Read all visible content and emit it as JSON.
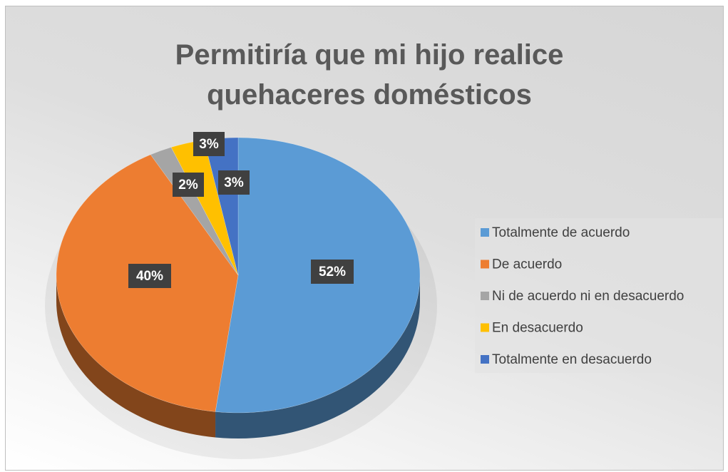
{
  "chart_data": {
    "type": "pie",
    "title": "Permitiría que mi hijo realice quehaceres domésticos",
    "categories": [
      "Totalmente de acuerdo",
      "De acuerdo",
      "Ni de acuerdo ni en desacuerdo",
      "En desacuerdo",
      "Totalmente en desacuerdo"
    ],
    "values": [
      52,
      40,
      2,
      3,
      3
    ],
    "value_labels": [
      "52%",
      "40%",
      "2%",
      "3%",
      "3%"
    ],
    "colors": [
      "#5b9bd5",
      "#ed7d31",
      "#a5a5a5",
      "#ffc000",
      "#4472c4"
    ],
    "legend": "right"
  }
}
